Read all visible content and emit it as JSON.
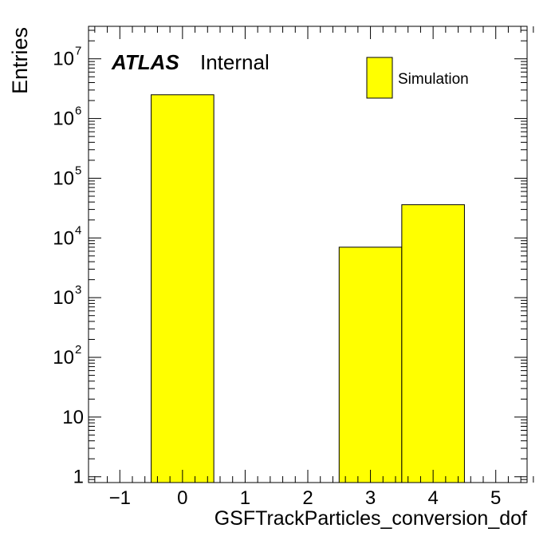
{
  "chart_data": {
    "type": "bar",
    "xlabel": "GSFTrackParticles_conversion_dof",
    "ylabel": "Entries",
    "xlim": [
      -1.5,
      5.5
    ],
    "ylim": [
      0.8,
      35000000
    ],
    "yscale": "log",
    "bin_width": 1,
    "bins": [
      {
        "center": 0,
        "value": 2500000
      },
      {
        "center": 3,
        "value": 7000
      },
      {
        "center": 4,
        "value": 36000
      }
    ],
    "x_ticks": [
      {
        "value": -1,
        "label": "−1"
      },
      {
        "value": 0,
        "label": "0"
      },
      {
        "value": 1,
        "label": "1"
      },
      {
        "value": 2,
        "label": "2"
      },
      {
        "value": 3,
        "label": "3"
      },
      {
        "value": 4,
        "label": "4"
      },
      {
        "value": 5,
        "label": "5"
      }
    ],
    "y_ticks": [
      {
        "value": 1,
        "base": "1",
        "exp": ""
      },
      {
        "value": 10,
        "base": "10",
        "exp": ""
      },
      {
        "value": 100,
        "base": "10",
        "exp": "2"
      },
      {
        "value": 1000,
        "base": "10",
        "exp": "3"
      },
      {
        "value": 10000,
        "base": "10",
        "exp": "4"
      },
      {
        "value": 100000,
        "base": "10",
        "exp": "5"
      },
      {
        "value": 1000000,
        "base": "10",
        "exp": "6"
      },
      {
        "value": 10000000,
        "base": "10",
        "exp": "7"
      }
    ],
    "legend": {
      "label": "Simulation",
      "position": "top-right"
    },
    "atlas_label": "ATLAS",
    "atlas_status": "Internal",
    "colors": {
      "fill": "#ffff00",
      "line": "#000000"
    }
  }
}
